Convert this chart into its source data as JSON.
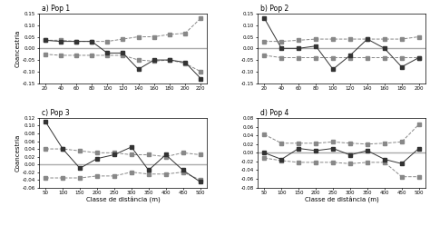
{
  "pop1": {
    "title": "a) Pop 1",
    "x": [
      20,
      40,
      60,
      80,
      100,
      120,
      140,
      160,
      180,
      200,
      220
    ],
    "y_main": [
      0.035,
      0.03,
      0.03,
      0.03,
      -0.02,
      -0.02,
      -0.09,
      -0.05,
      -0.05,
      -0.06,
      -0.13
    ],
    "y_upper": [
      0.035,
      0.035,
      0.03,
      0.03,
      0.03,
      0.04,
      0.05,
      0.05,
      0.06,
      0.065,
      0.13
    ],
    "y_lower": [
      -0.025,
      -0.03,
      -0.03,
      -0.03,
      -0.03,
      -0.03,
      -0.05,
      -0.055,
      -0.05,
      -0.065,
      -0.1
    ],
    "ylim": [
      -0.15,
      0.15
    ],
    "yticks": [
      -0.15,
      -0.1,
      -0.05,
      0.0,
      0.05,
      0.1,
      0.15
    ],
    "ytick_labels": [
      "-0.15",
      "-0.10",
      "-0.05",
      "0.00",
      "0.05",
      "0.10",
      "0.15"
    ],
    "xticks": [
      20,
      40,
      60,
      80,
      100,
      120,
      140,
      160,
      180,
      200,
      220
    ]
  },
  "pop2": {
    "title": "b) Pop 2",
    "x": [
      20,
      40,
      60,
      80,
      100,
      120,
      140,
      160,
      180,
      200
    ],
    "y_main": [
      0.13,
      0.0,
      0.0,
      0.01,
      -0.09,
      -0.03,
      0.04,
      0.0,
      -0.08,
      -0.04
    ],
    "y_upper": [
      0.03,
      0.03,
      0.035,
      0.04,
      0.04,
      0.04,
      0.04,
      0.04,
      0.04,
      0.05
    ],
    "y_lower": [
      -0.03,
      -0.04,
      -0.04,
      -0.04,
      -0.04,
      -0.04,
      -0.04,
      -0.04,
      -0.04,
      -0.04
    ],
    "ylim": [
      -0.15,
      0.15
    ],
    "yticks": [
      -0.15,
      -0.1,
      -0.05,
      0.0,
      0.05,
      0.1,
      0.15
    ],
    "ytick_labels": [
      "-0.15",
      "-0.10",
      "-0.05",
      "0.00",
      "0.05",
      "0.10",
      "0.15"
    ],
    "xticks": [
      20,
      40,
      60,
      80,
      100,
      120,
      140,
      160,
      180,
      200
    ]
  },
  "pop3": {
    "title": "c) Pop 3",
    "x": [
      50,
      100,
      150,
      200,
      250,
      300,
      350,
      400,
      450,
      500
    ],
    "y_main": [
      0.11,
      0.04,
      -0.01,
      0.015,
      0.025,
      0.045,
      -0.015,
      0.025,
      -0.015,
      -0.045
    ],
    "y_upper": [
      0.04,
      0.04,
      0.035,
      0.03,
      0.03,
      0.025,
      0.025,
      0.02,
      0.03,
      0.025
    ],
    "y_lower": [
      -0.035,
      -0.035,
      -0.035,
      -0.03,
      -0.03,
      -0.02,
      -0.025,
      -0.025,
      -0.02,
      -0.04
    ],
    "ylim": [
      -0.06,
      0.12
    ],
    "yticks": [
      -0.06,
      -0.04,
      -0.02,
      0.0,
      0.02,
      0.04,
      0.06,
      0.08,
      0.1,
      0.12
    ],
    "ytick_labels": [
      "-0.06",
      "-0.04",
      "-0.02",
      "0.00",
      "0.02",
      "0.04",
      "0.06",
      "0.08",
      "0.10",
      "0.12"
    ],
    "xticks": [
      50,
      100,
      150,
      200,
      250,
      300,
      350,
      400,
      450,
      500
    ]
  },
  "pop4": {
    "title": "d) Pop 4",
    "x": [
      50,
      100,
      150,
      200,
      250,
      300,
      350,
      400,
      450,
      500
    ],
    "y_main": [
      0.0,
      -0.015,
      0.01,
      0.005,
      0.01,
      -0.005,
      0.005,
      -0.015,
      -0.025,
      0.01
    ],
    "y_upper": [
      0.042,
      0.022,
      0.022,
      0.022,
      0.025,
      0.022,
      0.02,
      0.022,
      0.025,
      0.065
    ],
    "y_lower": [
      -0.012,
      -0.018,
      -0.022,
      -0.022,
      -0.022,
      -0.025,
      -0.022,
      -0.022,
      -0.055,
      -0.055
    ],
    "ylim": [
      -0.08,
      0.08
    ],
    "yticks": [
      -0.08,
      -0.06,
      -0.04,
      -0.02,
      0.0,
      0.02,
      0.04,
      0.06,
      0.08
    ],
    "ytick_labels": [
      "-0.08",
      "-0.06",
      "-0.04",
      "-0.02",
      "0.00",
      "0.02",
      "0.04",
      "0.06",
      "0.08"
    ],
    "xticks": [
      50,
      100,
      150,
      200,
      250,
      300,
      350,
      400,
      450,
      500
    ]
  },
  "xlabel": "Classe de distância (m)",
  "ylabel": "Coancestria",
  "main_color": "#333333",
  "envelope_color": "#888888",
  "zero_line_color": "#aaaaaa",
  "marker": "s",
  "markersize": 2.5,
  "linewidth": 0.7,
  "envelope_linewidth": 0.7
}
